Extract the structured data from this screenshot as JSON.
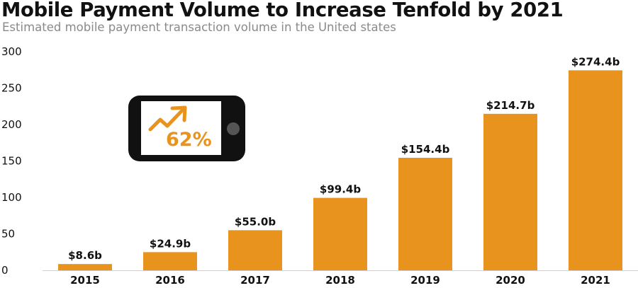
{
  "chart_data": {
    "type": "bar",
    "title": "Mobile Payment Volume to Increase Tenfold by 2021",
    "subtitle": "Estimated mobile payment transaction volume in the United states",
    "categories": [
      "2015",
      "2016",
      "2017",
      "2018",
      "2019",
      "2020",
      "2021"
    ],
    "values": [
      8.6,
      24.9,
      55.0,
      99.4,
      154.4,
      214.7,
      274.4
    ],
    "data_labels": [
      "$8.6b",
      "$24.9b",
      "$55.0b",
      "$99.4b",
      "$154.4b",
      "$214.7b",
      "$274.4b"
    ],
    "y_ticks": [
      0,
      50,
      100,
      150,
      200,
      250,
      300
    ],
    "ylim": [
      0,
      300
    ],
    "xlabel": "",
    "ylabel": "",
    "grid": false,
    "bar_color": "#E8931E"
  },
  "badge": {
    "percent": "62%",
    "icon": "phone-trend-up-icon",
    "accent_color": "#E8931E",
    "device_color": "#111111"
  }
}
